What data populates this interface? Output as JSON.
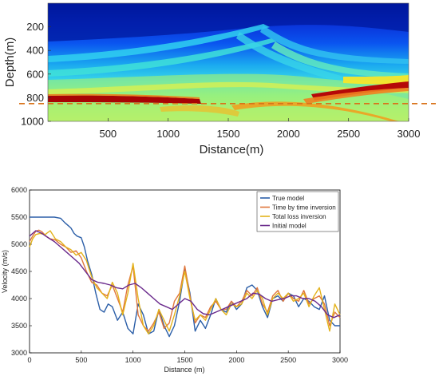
{
  "chart_data": [
    {
      "type": "heatmap",
      "title": "",
      "xlabel": "Distance(m)",
      "ylabel": "Depth(m)",
      "xlim": [
        0,
        3000
      ],
      "ylim": [
        1000,
        0
      ],
      "x_ticks": [
        500,
        1000,
        1500,
        2000,
        2500,
        3000
      ],
      "x_tick_labels": [
        "500",
        "1000",
        "1500",
        "2000",
        "2500",
        "3000"
      ],
      "y_ticks": [
        200,
        400,
        600,
        800,
        1000
      ],
      "y_tick_labels": [
        "200",
        "400",
        "600",
        "800",
        "1000"
      ],
      "colormap": "jet",
      "reference_line": {
        "depth": 850,
        "color": "#d9731a",
        "style": "dashed"
      },
      "colors": {
        "deep_blue": "#00169c",
        "blue": "#0a55f0",
        "cyan": "#28c8f0",
        "green": "#9cf07a",
        "yellow": "#f8e629",
        "red": "#a80505"
      }
    },
    {
      "type": "line",
      "title": "",
      "xlabel": "Distance (m)",
      "ylabel": "Velocity (m/s)",
      "xlim": [
        0,
        3000
      ],
      "ylim": [
        3000,
        6000
      ],
      "x_ticks": [
        0,
        500,
        1000,
        1500,
        2000,
        2500,
        3000
      ],
      "x_tick_labels": [
        "0",
        "500",
        "1000",
        "1500",
        "2000",
        "2500",
        "3000"
      ],
      "y_ticks": [
        3000,
        3500,
        4000,
        4500,
        5000,
        5500,
        6000
      ],
      "y_tick_labels": [
        "3000",
        "3500",
        "4000",
        "4500",
        "5000",
        "5500",
        "6000"
      ],
      "legend_position": "top-right",
      "grid": false,
      "series": [
        {
          "name": "True model",
          "color": "#2c5fa8",
          "x": [
            0,
            120,
            240,
            300,
            340,
            370,
            400,
            430,
            460,
            500,
            530,
            560,
            600,
            640,
            680,
            720,
            760,
            800,
            850,
            900,
            950,
            1000,
            1050,
            1100,
            1150,
            1200,
            1250,
            1300,
            1350,
            1400,
            1450,
            1500,
            1550,
            1600,
            1650,
            1700,
            1750,
            1800,
            1850,
            1900,
            1950,
            2000,
            2050,
            2100,
            2150,
            2200,
            2250,
            2300,
            2350,
            2400,
            2450,
            2500,
            2550,
            2600,
            2650,
            2700,
            2750,
            2800,
            2850,
            2900,
            2950,
            3000
          ],
          "y": [
            5500,
            5500,
            5500,
            5480,
            5400,
            5350,
            5300,
            5200,
            5150,
            5120,
            4950,
            4700,
            4450,
            4100,
            3800,
            3750,
            3900,
            3850,
            3600,
            3750,
            3450,
            3350,
            3900,
            3700,
            3350,
            3400,
            3800,
            3500,
            3300,
            3500,
            3950,
            4550,
            4100,
            3400,
            3600,
            3450,
            3700,
            4000,
            3800,
            3750,
            3950,
            3800,
            3900,
            4200,
            4250,
            4150,
            3850,
            3650,
            4000,
            4050,
            3950,
            4100,
            4050,
            3850,
            4000,
            3950,
            3850,
            3800,
            4050,
            3600,
            3500,
            3500
          ]
        },
        {
          "name": "Time by time inversion",
          "color": "#e0763c",
          "x": [
            0,
            30,
            60,
            90,
            120,
            160,
            200,
            250,
            300,
            350,
            400,
            450,
            500,
            550,
            600,
            650,
            700,
            750,
            800,
            850,
            900,
            950,
            1000,
            1050,
            1100,
            1150,
            1200,
            1250,
            1300,
            1350,
            1400,
            1450,
            1500,
            1550,
            1600,
            1650,
            1700,
            1750,
            1800,
            1850,
            1900,
            1950,
            2000,
            2050,
            2100,
            2150,
            2200,
            2250,
            2300,
            2350,
            2400,
            2450,
            2500,
            2550,
            2600,
            2650,
            2700,
            2750,
            2800,
            2850,
            2900,
            2950,
            3000
          ],
          "y": [
            5050,
            5150,
            5240,
            5260,
            5230,
            5150,
            5100,
            5080,
            5000,
            4950,
            4850,
            4880,
            4750,
            4500,
            4300,
            4250,
            4100,
            4050,
            4250,
            4000,
            3750,
            4250,
            4600,
            3700,
            3500,
            3400,
            3550,
            3750,
            3450,
            3550,
            3950,
            4100,
            4600,
            4050,
            3550,
            3700,
            3650,
            3850,
            3950,
            3800,
            3800,
            3950,
            3850,
            3950,
            4150,
            4050,
            4200,
            3900,
            3750,
            4050,
            4150,
            3950,
            4100,
            4000,
            3950,
            4150,
            3900,
            4000,
            4050,
            3900,
            3500,
            3750,
            3650
          ]
        },
        {
          "name": "Total loss inversion",
          "color": "#e3b21b",
          "x": [
            0,
            30,
            60,
            100,
            150,
            200,
            250,
            300,
            350,
            400,
            450,
            500,
            550,
            600,
            650,
            700,
            750,
            800,
            850,
            900,
            950,
            1000,
            1050,
            1100,
            1150,
            1200,
            1250,
            1300,
            1350,
            1400,
            1450,
            1500,
            1550,
            1600,
            1650,
            1700,
            1750,
            1800,
            1850,
            1900,
            1950,
            2000,
            2050,
            2100,
            2150,
            2200,
            2250,
            2300,
            2350,
            2400,
            2450,
            2500,
            2550,
            2600,
            2650,
            2700,
            2750,
            2800,
            2850,
            2900,
            2950,
            3000
          ],
          "y": [
            4950,
            5100,
            5180,
            5200,
            5180,
            5250,
            5100,
            5050,
            4950,
            4900,
            4800,
            4850,
            4700,
            4400,
            4200,
            4100,
            4000,
            4300,
            4100,
            3700,
            4100,
            4650,
            4000,
            3500,
            3350,
            3500,
            3800,
            3600,
            3400,
            3700,
            4050,
            4500,
            4000,
            3600,
            3700,
            3600,
            3800,
            4000,
            3800,
            3700,
            3900,
            3850,
            3900,
            4100,
            4000,
            4150,
            4000,
            3700,
            4000,
            4100,
            4000,
            4100,
            3950,
            4000,
            4100,
            3850,
            4050,
            4200,
            3800,
            3400,
            3900,
            3700
          ]
        },
        {
          "name": "Initial model",
          "color": "#6a2a8c",
          "x": [
            0,
            60,
            120,
            180,
            240,
            300,
            360,
            420,
            480,
            540,
            600,
            660,
            720,
            780,
            840,
            900,
            960,
            1020,
            1080,
            1140,
            1200,
            1260,
            1320,
            1380,
            1440,
            1500,
            1560,
            1620,
            1680,
            1740,
            1800,
            1860,
            1920,
            1980,
            2040,
            2100,
            2160,
            2220,
            2280,
            2340,
            2400,
            2460,
            2520,
            2580,
            2640,
            2700,
            2760,
            2820,
            2880,
            2940,
            3000
          ],
          "y": [
            5150,
            5250,
            5200,
            5120,
            5050,
            4950,
            4850,
            4750,
            4650,
            4500,
            4350,
            4300,
            4280,
            4250,
            4200,
            4180,
            4250,
            4280,
            4200,
            4100,
            4000,
            3900,
            3850,
            3800,
            3900,
            4000,
            3950,
            3800,
            3720,
            3700,
            3750,
            3800,
            3850,
            3900,
            3950,
            4000,
            4100,
            4080,
            4000,
            3950,
            3980,
            4000,
            4050,
            4050,
            4000,
            4000,
            3950,
            3850,
            3700,
            3650,
            3700
          ]
        }
      ]
    }
  ]
}
